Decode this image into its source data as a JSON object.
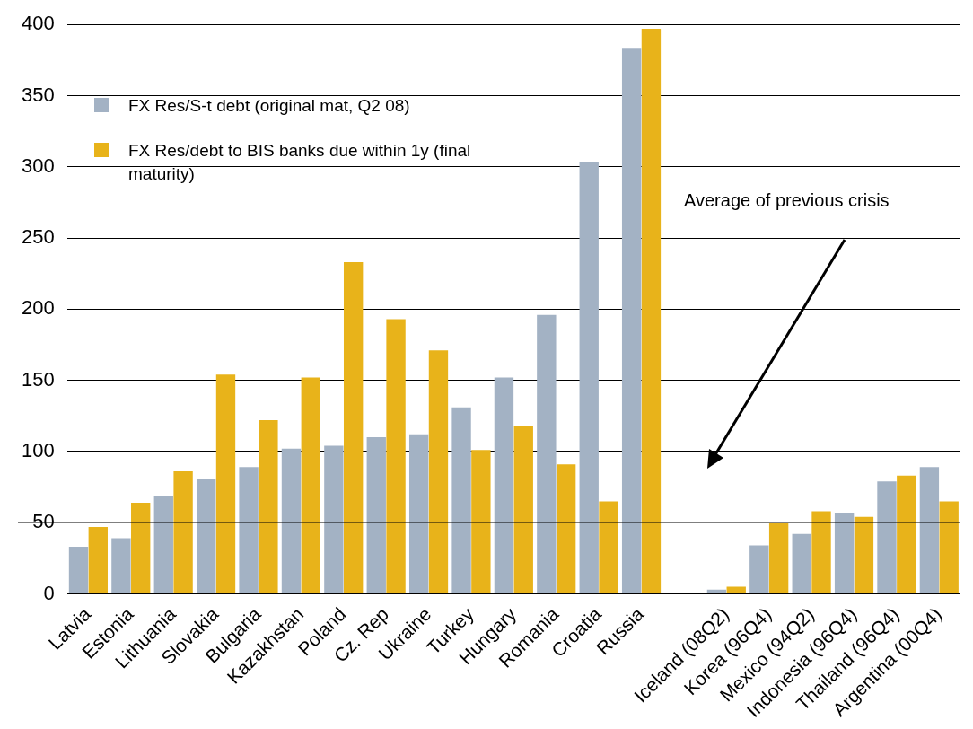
{
  "chart_data": {
    "type": "bar",
    "categories": [
      "Latvia",
      "Estonia",
      "Lithuania",
      "Slovakia",
      "Bulgaria",
      "Kazakhstan",
      "Poland",
      "Cz. Rep",
      "Ukraine",
      "Turkey",
      "Hungary",
      "Romania",
      "Croatia",
      "Russia",
      null,
      "Iceland (08Q2)",
      "Korea (96Q4)",
      "Mexico (94Q2)",
      "Indonesia (96Q4)",
      "Thailand (96Q4)",
      "Argentina (00Q4)"
    ],
    "series": [
      {
        "name": "FX Res/S-t debt (original mat, Q2 08)",
        "color": "#a3b2c4",
        "values": [
          33,
          39,
          69,
          81,
          89,
          102,
          104,
          110,
          112,
          131,
          152,
          196,
          303,
          383,
          null,
          3,
          34,
          42,
          57,
          79,
          89
        ]
      },
      {
        "name": "FX Res/debt to BIS banks due within 1y (final maturity)",
        "color": "#e8b31a",
        "values": [
          47,
          64,
          86,
          154,
          122,
          152,
          233,
          193,
          171,
          101,
          118,
          91,
          65,
          397,
          null,
          5,
          50,
          58,
          54,
          83,
          65
        ]
      }
    ],
    "ylim": [
      0,
      400
    ],
    "yticks": [
      0,
      50,
      100,
      150,
      200,
      250,
      300,
      350,
      400
    ],
    "grid": "y",
    "legend": "top left",
    "ref_lines": [
      {
        "axis": "y",
        "value": 50,
        "color": "#000000"
      }
    ],
    "annotations": [
      "Average of previous crisis"
    ]
  }
}
